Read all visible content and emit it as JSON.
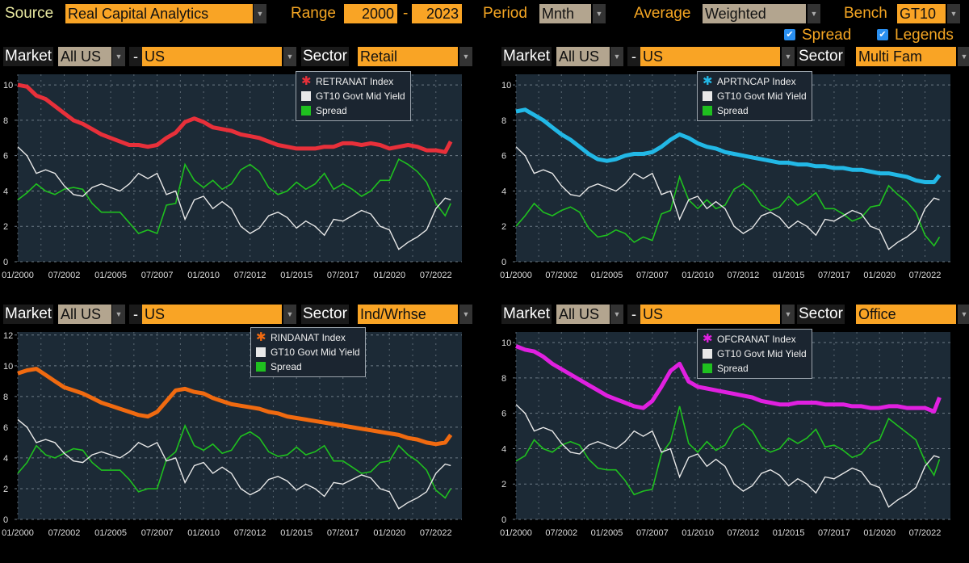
{
  "toolbar": {
    "source_label": "Source",
    "source_value": "Real Capital Analytics",
    "range_label": "Range",
    "range_from": "2000",
    "range_sep": "-",
    "range_to": "2023",
    "period_label": "Period",
    "period_value": "Mnth",
    "average_label": "Average",
    "average_value": "Weighted",
    "bench_label": "Bench",
    "bench_value": "GT10",
    "spread_label": "Spread",
    "spread_checked": true,
    "legends_label": "Legends",
    "legends_checked": true
  },
  "panels": [
    {
      "market_label": "Market",
      "market_value": "All US",
      "sep": "-",
      "region_value": "US",
      "sector_label": "Sector",
      "sector_value": "Retail"
    },
    {
      "market_label": "Market",
      "market_value": "All US",
      "sep": "-",
      "region_value": "US",
      "sector_label": "Sector",
      "sector_value": "Multi Fam"
    },
    {
      "market_label": "Market",
      "market_value": "All US",
      "sep": "-",
      "region_value": "US",
      "sector_label": "Sector",
      "sector_value": "Ind/Wrhse"
    },
    {
      "market_label": "Market",
      "market_value": "All US",
      "sep": "-",
      "region_value": "US",
      "sector_label": "Sector",
      "sector_value": "Office"
    }
  ],
  "chart_data": [
    {
      "type": "line",
      "xlabel": "",
      "ylabel": "",
      "ylim": [
        0,
        10.6
      ],
      "yticks": [
        "0",
        "2",
        "4",
        "6",
        "8",
        "10"
      ],
      "xlim": [
        2000,
        2023.9
      ],
      "xticks": [
        "01/2000",
        "07/2002",
        "01/2005",
        "07/2007",
        "01/2010",
        "07/2012",
        "01/2015",
        "07/2017",
        "01/2020",
        "07/2022"
      ],
      "legend": [
        "RETRANAT Index",
        "GT10 Govt Mid Yield",
        "Spread"
      ],
      "colors": [
        "#e8303a",
        "#e8e8e8",
        "#1fc01f"
      ],
      "cap": [
        10.0,
        9.9,
        9.4,
        9.2,
        8.8,
        8.4,
        8.0,
        7.8,
        7.5,
        7.2,
        7.0,
        6.8,
        6.6,
        6.6,
        6.5,
        6.6,
        7.0,
        7.3,
        7.9,
        8.1,
        7.9,
        7.6,
        7.5,
        7.4,
        7.2,
        7.1,
        7.0,
        6.8,
        6.6,
        6.5,
        6.4,
        6.4,
        6.4,
        6.5,
        6.5,
        6.7,
        6.7,
        6.6,
        6.7,
        6.6,
        6.4,
        6.5,
        6.6,
        6.5,
        6.3,
        6.3,
        6.2,
        6.8
      ]
    },
    {
      "type": "line",
      "xlabel": "",
      "ylabel": "",
      "ylim": [
        0,
        10.6
      ],
      "yticks": [
        "0",
        "2",
        "4",
        "6",
        "8",
        "10"
      ],
      "xlim": [
        2000,
        2023.9
      ],
      "xticks": [
        "01/2000",
        "07/2002",
        "01/2005",
        "07/2007",
        "01/2010",
        "07/2012",
        "01/2015",
        "07/2017",
        "01/2020",
        "07/2022"
      ],
      "legend": [
        "APRTNCAP Index",
        "GT10 Govt Mid Yield",
        "Spread"
      ],
      "colors": [
        "#22b8e6",
        "#e8e8e8",
        "#1fc01f"
      ],
      "cap": [
        8.5,
        8.6,
        8.3,
        8.0,
        7.6,
        7.2,
        6.9,
        6.5,
        6.1,
        5.8,
        5.7,
        5.8,
        6.0,
        6.1,
        6.1,
        6.2,
        6.5,
        6.9,
        7.2,
        7.0,
        6.7,
        6.5,
        6.4,
        6.2,
        6.1,
        6.0,
        5.9,
        5.8,
        5.7,
        5.6,
        5.6,
        5.5,
        5.5,
        5.4,
        5.4,
        5.3,
        5.3,
        5.2,
        5.2,
        5.1,
        5.0,
        5.0,
        4.9,
        4.8,
        4.6,
        4.5,
        4.5,
        4.9
      ]
    },
    {
      "type": "line",
      "xlabel": "",
      "ylabel": "",
      "ylim": [
        0,
        12.2
      ],
      "yticks": [
        "0",
        "2",
        "4",
        "6",
        "8",
        "10",
        "12"
      ],
      "xlim": [
        2000,
        2023.9
      ],
      "xticks": [
        "01/2000",
        "07/2002",
        "01/2005",
        "07/2007",
        "01/2010",
        "07/2012",
        "01/2015",
        "07/2017",
        "01/2020",
        "07/2022"
      ],
      "legend": [
        "RINDANAT Index",
        "GT10 Govt Mid Yield",
        "Spread"
      ],
      "colors": [
        "#f06a10",
        "#e8e8e8",
        "#1fc01f"
      ],
      "cap": [
        9.5,
        9.7,
        9.8,
        9.4,
        9.0,
        8.6,
        8.4,
        8.2,
        7.9,
        7.6,
        7.4,
        7.2,
        7.0,
        6.8,
        6.7,
        7.0,
        7.7,
        8.4,
        8.5,
        8.3,
        8.2,
        7.9,
        7.7,
        7.5,
        7.4,
        7.3,
        7.2,
        7.0,
        6.9,
        6.7,
        6.6,
        6.5,
        6.4,
        6.3,
        6.2,
        6.1,
        6.0,
        5.9,
        5.8,
        5.7,
        5.6,
        5.5,
        5.3,
        5.2,
        5.0,
        4.9,
        5.0,
        5.5
      ]
    },
    {
      "type": "line",
      "xlabel": "",
      "ylabel": "",
      "ylim": [
        0,
        10.6
      ],
      "yticks": [
        "0",
        "2",
        "4",
        "6",
        "8",
        "10"
      ],
      "xlim": [
        2000,
        2023.9
      ],
      "xticks": [
        "01/2000",
        "07/2002",
        "01/2005",
        "07/2007",
        "01/2010",
        "07/2012",
        "01/2015",
        "07/2017",
        "01/2020",
        "07/2022"
      ],
      "legend": [
        "OFCRANAT Index",
        "GT10 Govt Mid Yield",
        "Spread"
      ],
      "colors": [
        "#e020e0",
        "#e8e8e8",
        "#1fc01f"
      ],
      "cap": [
        9.8,
        9.6,
        9.5,
        9.2,
        8.8,
        8.5,
        8.2,
        7.9,
        7.6,
        7.3,
        7.0,
        6.8,
        6.6,
        6.4,
        6.3,
        6.7,
        7.5,
        8.4,
        8.8,
        7.8,
        7.5,
        7.4,
        7.3,
        7.2,
        7.1,
        7.0,
        6.9,
        6.7,
        6.6,
        6.5,
        6.5,
        6.6,
        6.6,
        6.6,
        6.5,
        6.5,
        6.5,
        6.4,
        6.4,
        6.3,
        6.3,
        6.4,
        6.4,
        6.3,
        6.3,
        6.3,
        6.1,
        6.9
      ]
    }
  ],
  "shared_x": [
    2000,
    2000.5,
    2001,
    2001.5,
    2002,
    2002.5,
    2003,
    2003.5,
    2004,
    2004.5,
    2005,
    2005.5,
    2006,
    2006.5,
    2007,
    2007.5,
    2008,
    2008.5,
    2009,
    2009.5,
    2010,
    2010.5,
    2011,
    2011.5,
    2012,
    2012.5,
    2013,
    2013.5,
    2014,
    2014.5,
    2015,
    2015.5,
    2016,
    2016.5,
    2017,
    2017.5,
    2018,
    2018.5,
    2019,
    2019.5,
    2020,
    2020.5,
    2021,
    2021.5,
    2022,
    2022.5,
    2023,
    2023.3
  ],
  "gt10_yield": [
    6.5,
    6.0,
    5.0,
    5.2,
    5.0,
    4.3,
    3.8,
    3.7,
    4.2,
    4.4,
    4.2,
    4.0,
    4.4,
    5.0,
    4.7,
    5.0,
    3.8,
    4.0,
    2.4,
    3.5,
    3.7,
    3.0,
    3.4,
    3.0,
    2.0,
    1.6,
    1.9,
    2.6,
    2.8,
    2.5,
    1.9,
    2.3,
    2.0,
    1.5,
    2.4,
    2.3,
    2.6,
    2.9,
    2.7,
    2.0,
    1.8,
    0.7,
    1.1,
    1.4,
    1.8,
    3.0,
    3.6,
    3.5
  ]
}
